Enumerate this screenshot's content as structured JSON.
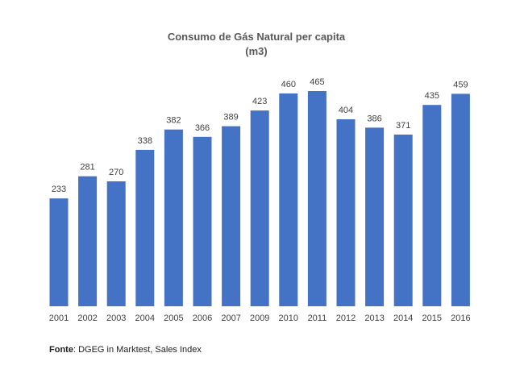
{
  "chart_data": {
    "type": "bar",
    "title": "Consumo de Gás Natural per capita",
    "subtitle": "(m3)",
    "categories": [
      "2001",
      "2002",
      "2003",
      "2004",
      "2005",
      "2006",
      "2007",
      "2009",
      "2010",
      "2011",
      "2012",
      "2013",
      "2014",
      "2015",
      "2016"
    ],
    "values": [
      233,
      281,
      270,
      338,
      382,
      366,
      389,
      423,
      460,
      465,
      404,
      386,
      371,
      435,
      459
    ],
    "xlabel": "",
    "ylabel": "",
    "ylim": [
      0,
      465
    ],
    "grid": false,
    "legend": "none",
    "bar_color": "#4472C4"
  },
  "source": {
    "label": "Fonte",
    "text": ": DGEG in Marktest, Sales Index"
  }
}
